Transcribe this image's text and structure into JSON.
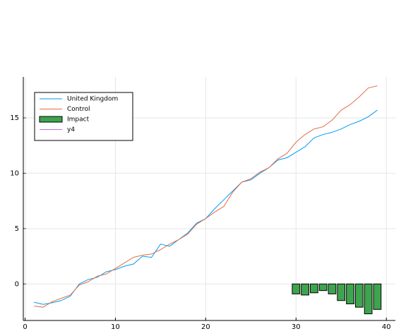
{
  "chart_data": {
    "type": "line",
    "series": [
      {
        "name": "United Kingdom",
        "color": "#009af9",
        "type": "line",
        "x": [
          1,
          2,
          3,
          4,
          5,
          6,
          7,
          8,
          9,
          10,
          11,
          12,
          13,
          14,
          15,
          16,
          17,
          18,
          19,
          20,
          21,
          22,
          23,
          24,
          25,
          26,
          27,
          28,
          29,
          30,
          31,
          32,
          33,
          34,
          35,
          36,
          37,
          38,
          39
        ],
        "values": [
          -1.65,
          -1.85,
          -1.7,
          -1.5,
          -1.1,
          0.0,
          0.4,
          0.6,
          1.1,
          1.3,
          1.6,
          1.8,
          2.5,
          2.4,
          3.6,
          3.4,
          4.0,
          4.6,
          5.5,
          5.9,
          6.8,
          7.6,
          8.4,
          9.2,
          9.4,
          10.0,
          10.5,
          11.2,
          11.4,
          11.9,
          12.4,
          13.2,
          13.5,
          13.7,
          14.0,
          14.4,
          14.7,
          15.1,
          15.7
        ]
      },
      {
        "name": "Control",
        "color": "#e26f46",
        "type": "line",
        "x": [
          1,
          2,
          3,
          4,
          5,
          6,
          7,
          8,
          9,
          10,
          11,
          12,
          13,
          14,
          15,
          16,
          17,
          18,
          19,
          20,
          21,
          22,
          23,
          24,
          25,
          26,
          27,
          28,
          29,
          30,
          31,
          32,
          33,
          34,
          35,
          36,
          37,
          38,
          39
        ],
        "values": [
          -2.0,
          -2.1,
          -1.6,
          -1.3,
          -1.0,
          -0.1,
          0.2,
          0.7,
          0.9,
          1.4,
          1.9,
          2.4,
          2.6,
          2.7,
          3.1,
          3.6,
          4.0,
          4.5,
          5.4,
          5.9,
          6.5,
          7.0,
          8.3,
          9.2,
          9.5,
          10.1,
          10.5,
          11.3,
          11.8,
          12.8,
          13.5,
          14.0,
          14.2,
          14.8,
          15.7,
          16.2,
          16.9,
          17.7,
          17.9
        ]
      },
      {
        "name": "Impact",
        "color": "#3ea44e",
        "type": "bar",
        "x": [
          30,
          31,
          32,
          33,
          34,
          35,
          36,
          37,
          38,
          39
        ],
        "values": [
          -0.9,
          -1.0,
          -0.8,
          -0.6,
          -0.9,
          -1.5,
          -1.8,
          -2.1,
          -2.7,
          -2.3
        ]
      },
      {
        "name": "y4",
        "color": "#c271d2",
        "type": "line",
        "x": [],
        "values": []
      }
    ],
    "xlim": [
      -0.2,
      41
    ],
    "xticks": [
      0,
      10,
      20,
      30,
      40
    ],
    "ylim": [
      -3.3,
      18.7
    ],
    "yticks": [
      0,
      5,
      10,
      15
    ],
    "grid": true,
    "legend": "top-left"
  }
}
